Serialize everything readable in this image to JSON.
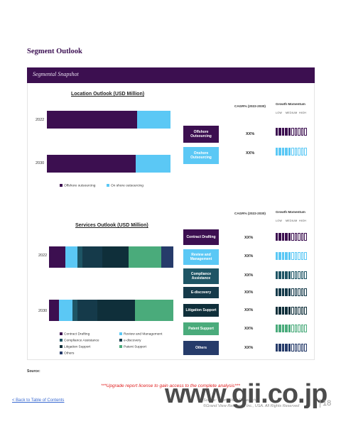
{
  "page": {
    "title": "Segment Outlook",
    "banner": "Segmental Snapshot",
    "source": "Source:",
    "upgrade_notice": "***Upgrade report license to gain access to the complete analysis***",
    "back_link": "< Back to Table of Contents",
    "copyright_line1": "Source: Grand View Research",
    "copyright_line2": "©Grand View Research, Inc., USA. All Rights Reserved",
    "page_number": "18",
    "watermark": "www.gii.co.jp"
  },
  "location": {
    "title": "Location Outlook (USD Million)",
    "cagr_header": "CAGR% (2022-2030)",
    "momentum_header": "Growth Momentum",
    "scale_labels": [
      "LOW",
      "MEDIUM",
      "HIGH"
    ],
    "rows": [
      {
        "label": "Offshore Outsourcing",
        "cagr": "XX%",
        "color": "#3c0f50",
        "filled": 5
      },
      {
        "label": "Onshore Outsourcing",
        "cagr": "XX%",
        "color": "#5bc8f5",
        "filled": 5
      }
    ]
  },
  "services": {
    "title": "Services Outlook (USD Million)",
    "cagr_header": "CAGR% (2022-2030)",
    "momentum_header": "Growth Momentum",
    "scale_labels": [
      "LOW",
      "MEDIUM",
      "HIGH"
    ],
    "rows": [
      {
        "label": "Contract Drafting",
        "cagr": "XX%",
        "color": "#3c0f50",
        "filled": 5
      },
      {
        "label": "Review and Management",
        "cagr": "XX%",
        "color": "#5bc8f5",
        "filled": 5
      },
      {
        "label": "Compliance Assistance",
        "cagr": "XX%",
        "color": "#1e5565",
        "filled": 5
      },
      {
        "label": "E-discovery",
        "cagr": "XX%",
        "color": "#153a4a",
        "filled": 5
      },
      {
        "label": "Litigation Support",
        "cagr": "XX%",
        "color": "#0f2f3a",
        "filled": 5
      },
      {
        "label": "Patent Support",
        "cagr": "XX%",
        "color": "#4aab7b",
        "filled": 5
      },
      {
        "label": "Others",
        "cagr": "XX%",
        "color": "#263b6a",
        "filled": 5
      }
    ]
  },
  "chart_data": [
    {
      "type": "bar",
      "orientation": "horizontal",
      "stacked": true,
      "title": "Location Outlook (USD Million)",
      "categories": [
        "2022",
        "2030"
      ],
      "series": [
        {
          "name": "Offshore outsourcing",
          "color": "#3c0f50",
          "values": [
            73,
            72
          ]
        },
        {
          "name": "On shore outsourcing",
          "color": "#5bc8f5",
          "values": [
            27,
            28
          ]
        }
      ],
      "legend": "bottom"
    },
    {
      "type": "bar",
      "orientation": "horizontal",
      "stacked": true,
      "title": "Services Outlook (USD Million)",
      "categories": [
        "2022",
        "2030"
      ],
      "series": [
        {
          "name": "Contract Drafting",
          "color": "#3c0f50",
          "values": [
            13,
            8
          ]
        },
        {
          "name": "Review and Management",
          "color": "#5bc8f5",
          "values": [
            10,
            11
          ]
        },
        {
          "name": "Compliance Assistance",
          "color": "#1e5565",
          "values": [
            4,
            4
          ]
        },
        {
          "name": "e-discovery",
          "color": "#153a4a",
          "values": [
            16,
            16
          ]
        },
        {
          "name": "Litigation Support",
          "color": "#0f2f3a",
          "values": [
            21,
            30
          ]
        },
        {
          "name": "Patent Support",
          "color": "#4aab7b",
          "values": [
            26,
            31
          ]
        },
        {
          "name": "Others",
          "color": "#263b6a",
          "values": [
            10,
            0
          ]
        }
      ],
      "legend": "bottom"
    }
  ]
}
